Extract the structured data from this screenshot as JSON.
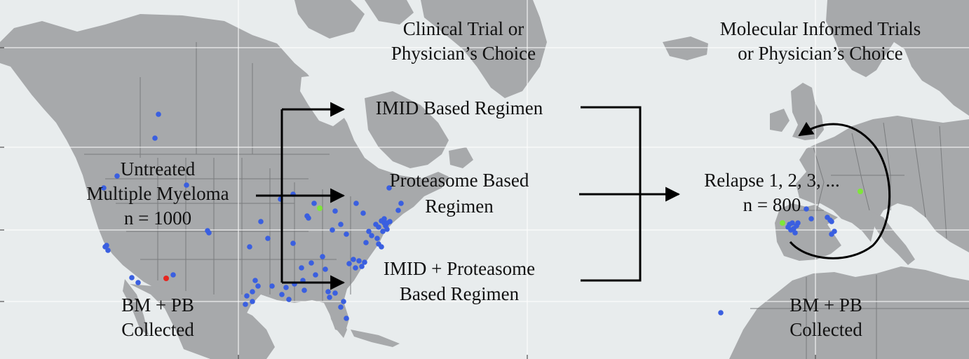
{
  "colors": {
    "ocean": "#e8eced",
    "land": "#a7a9ab",
    "border": "#7a7c7e",
    "grid": "#ffffff",
    "site": "#3a5fe0",
    "site_red": "#e6261f",
    "site_green": "#7fe63a",
    "text": "#111111",
    "arrow": "#000000"
  },
  "labels": {
    "untreated_line1": "Untreated",
    "untreated_line2": "Multiple Myeloma",
    "untreated_line3": "n = 1000",
    "bm_pb_left_line1": "BM + PB",
    "bm_pb_left_line2": "Collected",
    "clinical_trial_line1": "Clinical Trial or",
    "clinical_trial_line2": "Physician’s Choice",
    "imid_regimen": "IMID Based Regimen",
    "proteasome_line1": "Proteasome Based",
    "proteasome_line2": "Regimen",
    "combo_line1": "IMID + Proteasome",
    "combo_line2": "Based Regimen",
    "molecular_line1": "Molecular Informed Trials",
    "molecular_line2": "or Physician’s Choice",
    "relapse_line1": "Relapse 1, 2, 3, ...",
    "relapse_line2": "n = 800",
    "bm_pb_right_line1": "BM + PB",
    "bm_pb_right_line2": "Collected"
  },
  "icons": {
    "site_marker": "dot-icon",
    "flow_arrow": "arrow-right-icon",
    "relapse_cycle": "circular-arrow-icon"
  }
}
